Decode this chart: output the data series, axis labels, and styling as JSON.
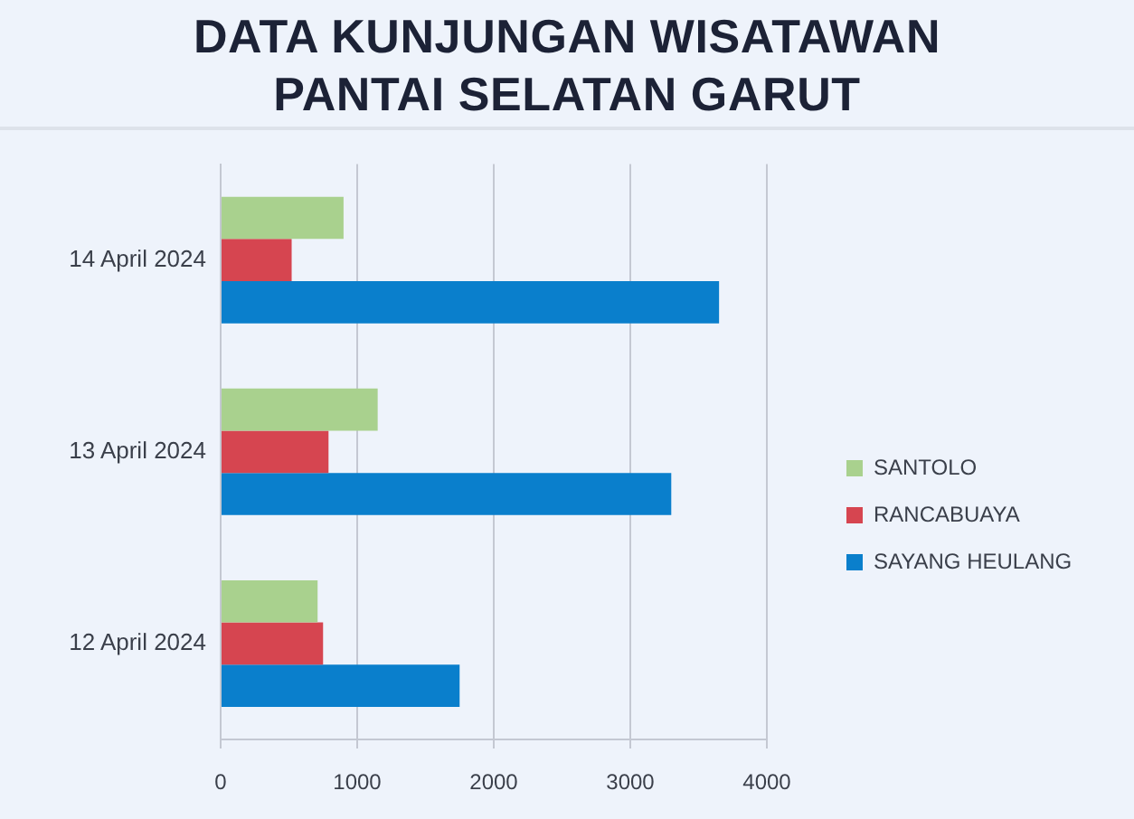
{
  "chart_data": {
    "type": "bar",
    "orientation": "horizontal",
    "title": "DATA KUNJUNGAN WISATAWAN PANTAI SELATAN GARUT",
    "categories": [
      "14 April 2024",
      "13 April 2024",
      "12 April 2024"
    ],
    "series": [
      {
        "name": "SANTOLO",
        "color": "#a9d18e",
        "values": [
          900,
          1150,
          710
        ]
      },
      {
        "name": "RANCABUAYA",
        "color": "#d64550",
        "values": [
          520,
          790,
          750
        ]
      },
      {
        "name": "SAYANG HEULANG",
        "color": "#0a7fcc",
        "values": [
          3650,
          3300,
          1750
        ]
      }
    ],
    "xlim": [
      0,
      4000
    ],
    "xticks": [
      0,
      1000,
      2000,
      3000,
      4000
    ],
    "grid": "x",
    "legend": "right"
  }
}
